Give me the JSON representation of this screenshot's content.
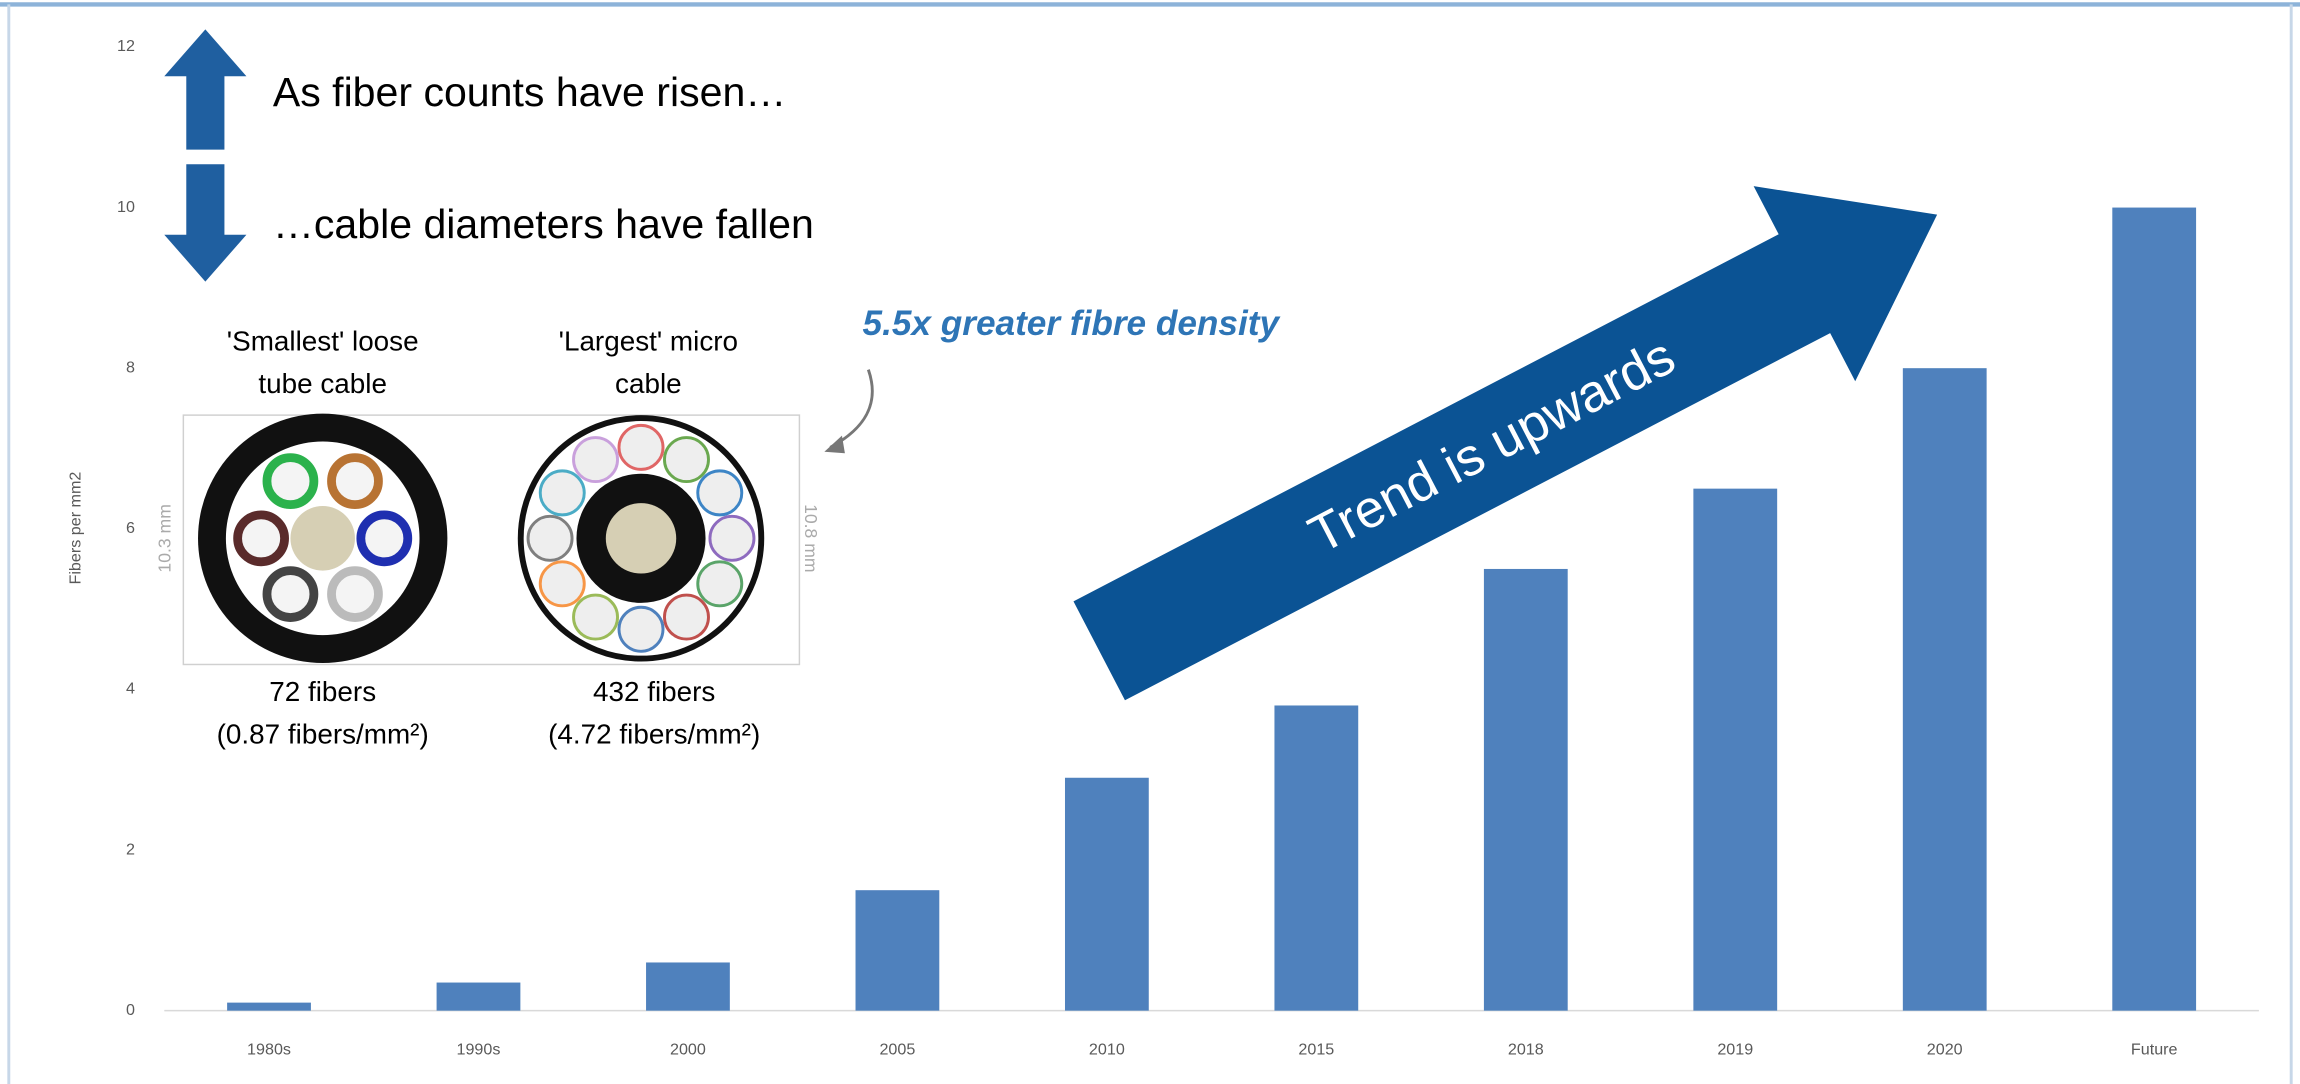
{
  "chart_data": {
    "type": "bar",
    "y_label": "Fibers per mm2",
    "categories": [
      "1980s",
      "1990s",
      "2000",
      "2005",
      "2010",
      "2015",
      "2018",
      "2019",
      "2020",
      "Future"
    ],
    "values": [
      0.1,
      0.35,
      0.6,
      1.5,
      2.9,
      3.8,
      5.5,
      6.5,
      8,
      10
    ],
    "color": "#4f81bd",
    "ylim": [
      0,
      12
    ],
    "yticks": [
      0,
      2,
      4,
      6,
      8,
      10,
      12
    ],
    "annotations": {
      "rise": "As fiber counts have risen…",
      "fall": "…cable diameters have fallen",
      "density": "5.5x greater fibre density",
      "trend": "Trend is upwards",
      "cable_small": {
        "title": [
          "'Smallest' loose",
          "tube cable"
        ],
        "diameter": "10.3 mm",
        "fibers": "72 fibers",
        "fiber_density": "(0.87 fibers/mm²)"
      },
      "cable_large": {
        "title": [
          "'Largest' micro",
          "cable"
        ],
        "diameter": "10.8 mm",
        "fibers": "432 fibers",
        "fiber_density": "(4.72 fibers/mm²)"
      }
    }
  }
}
